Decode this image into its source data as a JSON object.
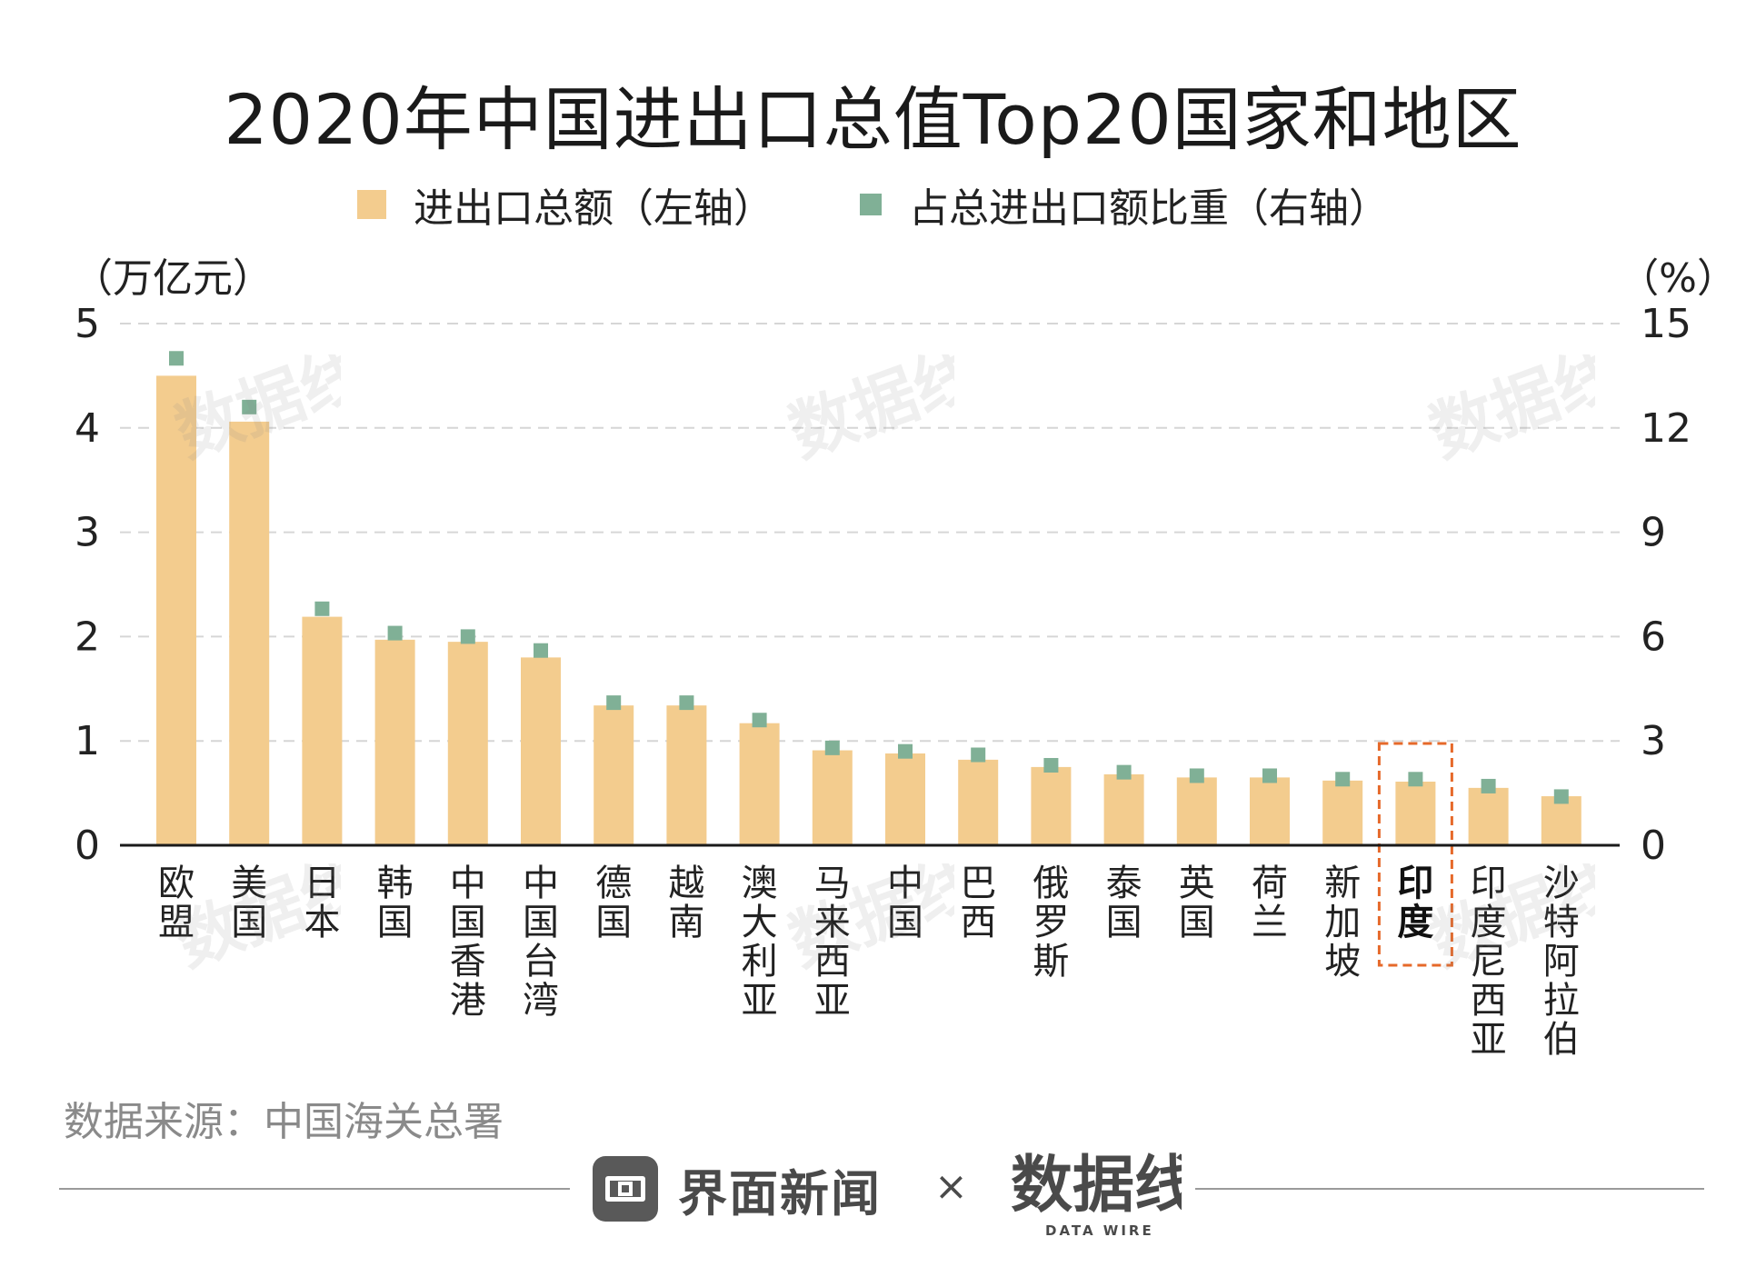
{
  "title": "2020年中国进出口总值Top20国家和地区",
  "legend": {
    "bar_label": "进出口总额（左轴）",
    "dot_label": "占总进出口额比重（右轴）"
  },
  "colors": {
    "bar": "#f3cc8e",
    "dot": "#80b096",
    "highlight_box": "#e6692a"
  },
  "chart_data": {
    "type": "bar",
    "categories": [
      "欧盟",
      "美国",
      "日本",
      "韩国",
      "中国香港",
      "中国台湾",
      "德国",
      "越南",
      "澳大利亚",
      "马来西亚",
      "中国",
      "巴西",
      "俄罗斯",
      "泰国",
      "英国",
      "荷兰",
      "新加坡",
      "印度",
      "印度尼西亚",
      "沙特阿拉伯"
    ],
    "series": [
      {
        "name": "进出口总额（左轴）",
        "axis": "left",
        "type": "bar",
        "values": [
          4.5,
          4.06,
          2.19,
          1.97,
          1.95,
          1.8,
          1.34,
          1.34,
          1.17,
          0.91,
          0.88,
          0.82,
          0.75,
          0.68,
          0.65,
          0.65,
          0.62,
          0.61,
          0.55,
          0.47
        ]
      },
      {
        "name": "占总进出口额比重（右轴）",
        "axis": "right",
        "type": "scatter",
        "values": [
          14.0,
          12.6,
          6.8,
          6.1,
          6.0,
          5.6,
          4.1,
          4.1,
          3.6,
          2.8,
          2.7,
          2.6,
          2.3,
          2.1,
          2.0,
          2.0,
          1.9,
          1.9,
          1.7,
          1.4
        ]
      }
    ],
    "y_left": {
      "label": "（万亿元）",
      "ylim": [
        0,
        5
      ],
      "ticks": [
        "0",
        "1",
        "2",
        "3",
        "4",
        "5"
      ]
    },
    "y_right": {
      "label": "（%）",
      "ylim": [
        0,
        15
      ],
      "ticks": [
        "0",
        "3",
        "6",
        "9",
        "12",
        "15"
      ]
    },
    "highlight_category": "印度",
    "grid": true,
    "legend_position": "top-center"
  },
  "source": "数据来源：中国海关总署",
  "footer": {
    "brand_icon": "jiemian-logo-icon",
    "brand_name": "界面新闻",
    "times": "×",
    "partner_logo": "数据线",
    "partner_sub": "DATA WIRE"
  }
}
